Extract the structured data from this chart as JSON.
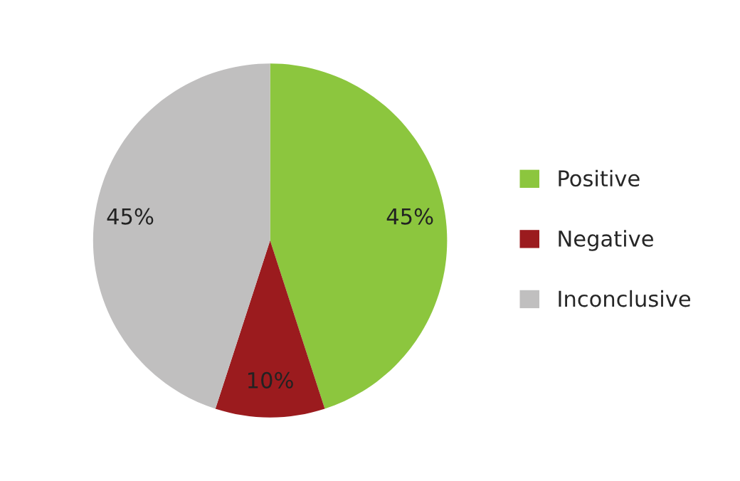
{
  "chart_data": {
    "type": "pie",
    "categories": [
      "Positive",
      "Negative",
      "Inconclusive"
    ],
    "values": [
      45,
      10,
      45
    ],
    "colors": [
      "#8cc63e",
      "#9b1b1e",
      "#c0bfbf"
    ],
    "value_labels": [
      "45%",
      "10%",
      "45%"
    ],
    "legend": "right"
  }
}
